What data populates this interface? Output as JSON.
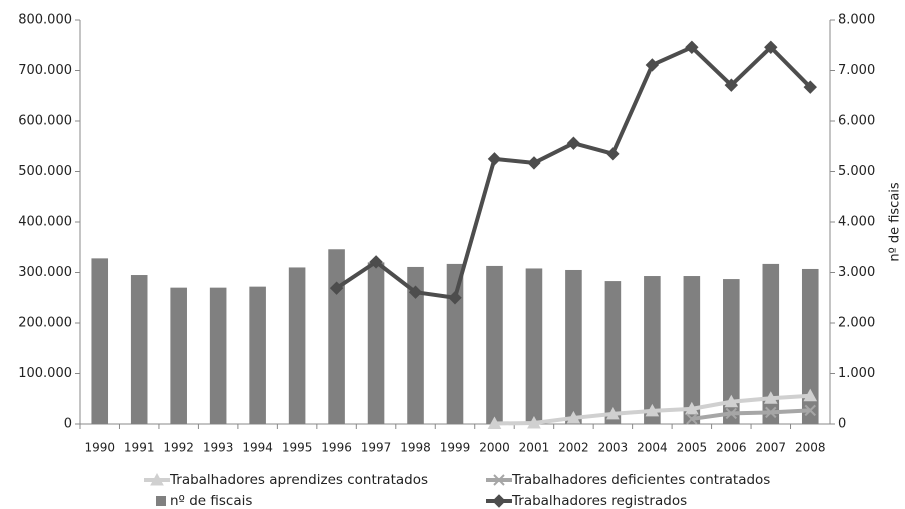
{
  "chart_data": {
    "type": "combo",
    "categories": [
      "1990",
      "1991",
      "1992",
      "1993",
      "1994",
      "1995",
      "1996",
      "1997",
      "1998",
      "1999",
      "2000",
      "2001",
      "2002",
      "2003",
      "2004",
      "2005",
      "2006",
      "2007",
      "2008"
    ],
    "y2_label": "nº de fiscais",
    "ylim": [
      0,
      800000
    ],
    "yticks": [
      0,
      {
        "value": 100000,
        "label": "100.000"
      },
      {
        "value": 200000,
        "label": "200.000"
      },
      {
        "value": 300000,
        "label": "300.000"
      },
      {
        "value": 400000,
        "label": "400.000"
      },
      {
        "value": 500000,
        "label": "500.000"
      },
      {
        "value": 600000,
        "label": "600.000"
      },
      {
        "value": 700000,
        "label": "700.000"
      },
      {
        "value": 800000,
        "label": "800.000"
      }
    ],
    "y2lim": [
      0,
      8000
    ],
    "y2ticks": [
      0,
      {
        "value": 1000,
        "label": "1.000"
      },
      {
        "value": 2000,
        "label": "2.000"
      },
      {
        "value": 3000,
        "label": "3.000"
      },
      {
        "value": 4000,
        "label": "4.000"
      },
      {
        "value": 5000,
        "label": "5.000"
      },
      {
        "value": 6000,
        "label": "6.000"
      },
      {
        "value": 7000,
        "label": "7.000"
      },
      {
        "value": 8000,
        "label": "8.000"
      }
    ],
    "series": [
      {
        "name": "nº de fiscais",
        "type": "bar",
        "axis": "y2",
        "color": "#808080",
        "values": [
          3280,
          2950,
          2700,
          2700,
          2720,
          3100,
          3460,
          3200,
          3110,
          3170,
          3130,
          3080,
          3050,
          2830,
          2930,
          2930,
          2870,
          3170,
          3070
        ]
      },
      {
        "name": "Trabalhadores registrados",
        "type": "line",
        "marker": "diamond",
        "color": "#4d4d4d",
        "values": [
          null,
          null,
          null,
          null,
          null,
          null,
          269000,
          321000,
          261000,
          250000,
          525000,
          517000,
          556000,
          535000,
          711000,
          746000,
          671000,
          746000,
          667000
        ]
      },
      {
        "name": "Trabalhadores aprendizes contratados",
        "type": "line",
        "marker": "triangle",
        "color": "#d0d0d0",
        "values": [
          null,
          null,
          null,
          null,
          null,
          null,
          null,
          null,
          null,
          null,
          1000,
          2000,
          12000,
          20000,
          26000,
          30000,
          44000,
          51000,
          56000
        ]
      },
      {
        "name": "Trabalhadores deficientes contratados",
        "type": "line",
        "marker": "cross",
        "color": "#a6a6a6",
        "values": [
          null,
          null,
          null,
          null,
          null,
          null,
          null,
          null,
          null,
          null,
          null,
          null,
          null,
          null,
          null,
          10000,
          21000,
          23000,
          27000
        ]
      }
    ],
    "legend_order": [
      2,
      3,
      0,
      1
    ]
  }
}
